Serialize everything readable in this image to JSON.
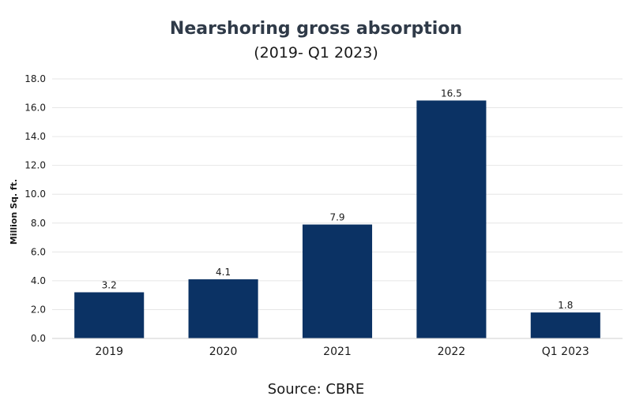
{
  "chart_data": {
    "type": "bar",
    "title": "Nearshoring gross absorption",
    "subtitle": "(2019- Q1 2023)",
    "xlabel": "",
    "ylabel": "Million Sq. ft.",
    "categories": [
      "2019",
      "2020",
      "2021",
      "2022",
      "Q1 2023"
    ],
    "values": [
      3.2,
      4.1,
      7.9,
      16.5,
      1.8
    ],
    "data_labels": [
      "3.2",
      "4.1",
      "7.9",
      "16.5",
      "1.8"
    ],
    "ylim": [
      0,
      18
    ],
    "yticks": [
      0,
      2,
      4,
      6,
      8,
      10,
      12,
      14,
      16,
      18
    ],
    "ytick_labels": [
      "0.0",
      "2.0",
      "4.0",
      "6.0",
      "8.0",
      "10.0",
      "12.0",
      "14.0",
      "16.0",
      "18.0"
    ],
    "grid": true,
    "legend": "none",
    "bar_color": "#0b3264",
    "grid_color": "#e6e6e6",
    "axis_color": "#cfcfcf"
  },
  "source": "Source: CBRE"
}
